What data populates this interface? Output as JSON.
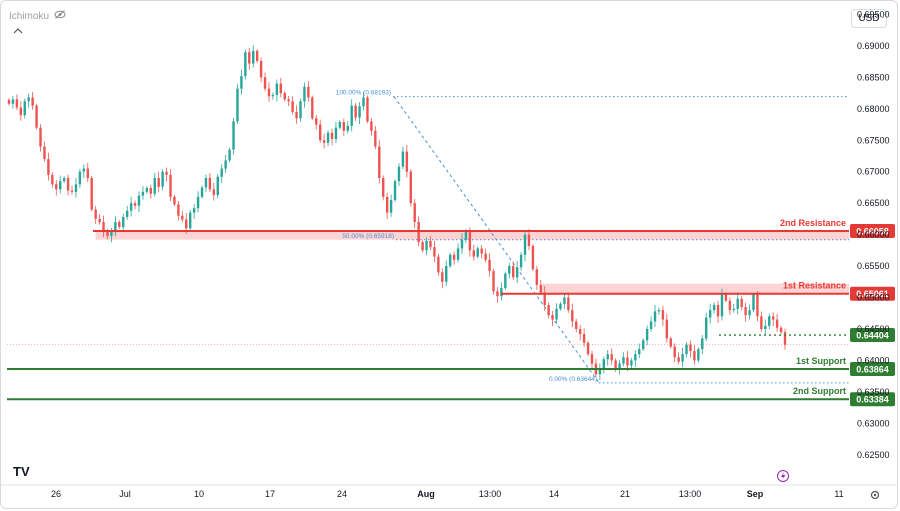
{
  "header": {
    "indicator_name": "Ichimoku",
    "indicator_icon": "eye-slash-icon",
    "currency": "USD",
    "collapse_icon": "chevron-up-icon"
  },
  "colors": {
    "up": "#26a69a",
    "down": "#ef5350",
    "resistance": "#e53935",
    "support": "#2e7d32",
    "fib": "#4a90d9",
    "resistance_zone": "rgba(239,83,80,0.25)"
  },
  "chart_data": {
    "type": "candlestick",
    "title": "",
    "xlabel": "",
    "ylabel": "",
    "ylim": [
      0.6202,
      0.6965
    ],
    "y_ticks": [
      "0.69500",
      "0.69000",
      "0.68500",
      "0.68000",
      "0.67500",
      "0.67000",
      "0.66500",
      "0.66000",
      "0.65500",
      "0.65000",
      "0.64500",
      "0.64000",
      "0.63500",
      "0.63000",
      "0.62500"
    ],
    "x_ticks": [
      "26",
      "Jul",
      "10",
      "17",
      "24",
      "Aug",
      "13:00",
      "14",
      "21",
      "13:00",
      "Sep",
      "11"
    ],
    "x_ticks_bold": [
      "Aug",
      "Sep"
    ],
    "series": [
      {
        "close": [
          0.6808,
          0.6815,
          0.6802,
          0.679,
          0.6812,
          0.6818,
          0.6805,
          0.677,
          0.674,
          0.672,
          0.6695,
          0.668,
          0.6672,
          0.6685,
          0.669,
          0.667,
          0.6668,
          0.668,
          0.67,
          0.6705,
          0.669,
          0.664,
          0.6625,
          0.662,
          0.6605,
          0.6598,
          0.6604,
          0.662,
          0.6612,
          0.6628,
          0.6638,
          0.665,
          0.6646,
          0.6662,
          0.6668,
          0.6674,
          0.6665,
          0.669,
          0.6676,
          0.67,
          0.6695,
          0.666,
          0.6648,
          0.663,
          0.6624,
          0.661,
          0.6635,
          0.6642,
          0.666,
          0.6675,
          0.669,
          0.6672,
          0.6663,
          0.6692,
          0.6705,
          0.6718,
          0.6735,
          0.678,
          0.6832,
          0.6852,
          0.689,
          0.6872,
          0.6892,
          0.6876,
          0.685,
          0.6832,
          0.682,
          0.6822,
          0.684,
          0.6825,
          0.6815,
          0.6812,
          0.6795,
          0.6785,
          0.6812,
          0.6835,
          0.6818,
          0.6785,
          0.6775,
          0.675,
          0.6746,
          0.6762,
          0.6752,
          0.677,
          0.6779,
          0.6765,
          0.6773,
          0.6805,
          0.6786,
          0.6804,
          0.6818,
          0.678,
          0.6765,
          0.674,
          0.669,
          0.666,
          0.6635,
          0.6655,
          0.6685,
          0.6708,
          0.6732,
          0.67,
          0.665,
          0.662,
          0.6588,
          0.6575,
          0.659,
          0.658,
          0.6565,
          0.654,
          0.6525,
          0.655,
          0.6568,
          0.656,
          0.6578,
          0.6592,
          0.6605,
          0.6575,
          0.6565,
          0.6578,
          0.657,
          0.656,
          0.6542,
          0.651,
          0.6502,
          0.6515,
          0.6538,
          0.655,
          0.6532,
          0.6548,
          0.6568,
          0.66,
          0.6582,
          0.6545,
          0.652,
          0.6508,
          0.6488,
          0.6472,
          0.6465,
          0.6482,
          0.649,
          0.65,
          0.648,
          0.6462,
          0.645,
          0.6442,
          0.6428,
          0.641,
          0.6395,
          0.6378,
          0.6385,
          0.6402,
          0.641,
          0.64,
          0.6385,
          0.6395,
          0.6405,
          0.6392,
          0.64,
          0.641,
          0.6418,
          0.6432,
          0.645,
          0.6462,
          0.6478,
          0.648,
          0.6465,
          0.6435,
          0.6422,
          0.6405,
          0.6398,
          0.641,
          0.6425,
          0.6415,
          0.64,
          0.6418,
          0.6435,
          0.6468,
          0.648,
          0.6488,
          0.647,
          0.6505,
          0.6495,
          0.648,
          0.6482,
          0.6498,
          0.6485,
          0.6472,
          0.648,
          0.6505,
          0.647,
          0.645,
          0.6455,
          0.647,
          0.6465,
          0.6452,
          0.6445,
          0.6425
        ]
      }
    ],
    "levels": [
      {
        "name": "2nd Resistance",
        "value": 0.66058,
        "label": "0.66058",
        "role": "resistance"
      },
      {
        "name": "1st Resistance",
        "value": 0.65061,
        "label": "0.65061",
        "role": "resistance"
      },
      {
        "name": "",
        "value": 0.64404,
        "label": "0.64404",
        "role": "pivot"
      },
      {
        "name": "1st Support",
        "value": 0.63864,
        "label": "0.63864",
        "role": "support"
      },
      {
        "name": "2nd Support",
        "value": 0.63384,
        "label": "0.63384",
        "role": "support"
      }
    ],
    "fibonacci": [
      {
        "label": "100.00% (0.68193)",
        "value": 0.68193
      },
      {
        "label": "50.00% (0.65918)",
        "value": 0.65918
      },
      {
        "label": "0.00% (0.63644)",
        "value": 0.63644
      }
    ],
    "resistance_zones": [
      {
        "low": 0.6592,
        "high": 0.6606,
        "from_bar": 22,
        "to_bar": 220
      },
      {
        "low": 0.6506,
        "high": 0.6522,
        "from_bar": 135,
        "to_bar": 220
      }
    ],
    "last_price_line": 0.6425,
    "grid": false,
    "legend": "none",
    "watermark": "TV",
    "settings_icon": "gear-icon",
    "alert_icon": "lightning-icon"
  }
}
